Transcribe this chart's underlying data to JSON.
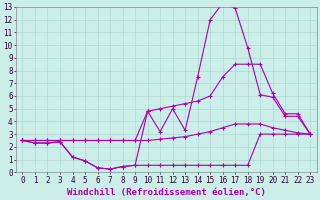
{
  "xlabel": "Windchill (Refroidissement éolien,°C)",
  "xlim": [
    -0.5,
    23.5
  ],
  "ylim": [
    0,
    13
  ],
  "xticks": [
    0,
    1,
    2,
    3,
    4,
    5,
    6,
    7,
    8,
    9,
    10,
    11,
    12,
    13,
    14,
    15,
    16,
    17,
    18,
    19,
    20,
    21,
    22,
    23
  ],
  "yticks": [
    0,
    1,
    2,
    3,
    4,
    5,
    6,
    7,
    8,
    9,
    10,
    11,
    12,
    13
  ],
  "background_color": "#cceee8",
  "grid_color": "#aad8d0",
  "line_color": "#aa00aa",
  "lines": [
    {
      "x": [
        0,
        1,
        2,
        3,
        4,
        5,
        6,
        7,
        8,
        9,
        10,
        11,
        12,
        13,
        14,
        15,
        16,
        17,
        18,
        19,
        20,
        21,
        22,
        23
      ],
      "y": [
        2.5,
        2.3,
        2.3,
        2.4,
        1.2,
        0.9,
        0.35,
        0.25,
        0.45,
        0.55,
        0.55,
        0.55,
        0.55,
        0.55,
        0.55,
        0.55,
        0.55,
        0.55,
        0.55,
        3.0,
        3.0,
        3.0,
        3.0,
        3.0
      ]
    },
    {
      "x": [
        0,
        1,
        2,
        3,
        4,
        5,
        6,
        7,
        8,
        9,
        10,
        11,
        12,
        13,
        14,
        15,
        16,
        17,
        18,
        19,
        20,
        21,
        22,
        23
      ],
      "y": [
        2.5,
        2.3,
        2.3,
        2.4,
        1.2,
        0.9,
        0.35,
        0.25,
        0.45,
        0.55,
        4.8,
        3.2,
        5.0,
        3.3,
        7.5,
        12.0,
        13.3,
        12.9,
        9.8,
        6.1,
        5.9,
        4.4,
        4.4,
        3.0
      ]
    },
    {
      "x": [
        0,
        1,
        2,
        3,
        4,
        5,
        6,
        7,
        8,
        9,
        10,
        11,
        12,
        13,
        14,
        15,
        16,
        17,
        18,
        19,
        20,
        21,
        22,
        23
      ],
      "y": [
        2.5,
        2.5,
        2.5,
        2.5,
        2.5,
        2.5,
        2.5,
        2.5,
        2.5,
        2.5,
        4.8,
        5.0,
        5.2,
        5.4,
        5.6,
        6.0,
        7.5,
        8.5,
        8.5,
        8.5,
        6.2,
        4.6,
        4.6,
        3.0
      ]
    },
    {
      "x": [
        0,
        1,
        2,
        3,
        4,
        5,
        6,
        7,
        8,
        9,
        10,
        11,
        12,
        13,
        14,
        15,
        16,
        17,
        18,
        19,
        20,
        21,
        22,
        23
      ],
      "y": [
        2.5,
        2.5,
        2.5,
        2.5,
        2.5,
        2.5,
        2.5,
        2.5,
        2.5,
        2.5,
        2.5,
        2.6,
        2.7,
        2.8,
        3.0,
        3.2,
        3.5,
        3.8,
        3.8,
        3.8,
        3.5,
        3.3,
        3.1,
        3.0
      ]
    }
  ],
  "font_family": "monospace",
  "tick_fontsize": 5.5,
  "label_fontsize": 6.5
}
